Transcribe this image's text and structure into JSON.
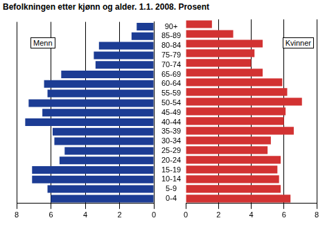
{
  "chart_data": {
    "type": "bar",
    "orientation": "horizontal",
    "title": "Befolkningen etter kjønn og alder. 1.1. 2008. Prosent",
    "categories": [
      "0-4",
      "5-9",
      "10-14",
      "15-19",
      "20-24",
      "25-29",
      "30-34",
      "35-39",
      "40-44",
      "45-49",
      "50-54",
      "55-59",
      "60-64",
      "65-69",
      "70-74",
      "75-79",
      "80-84",
      "85-89",
      "90+"
    ],
    "series": [
      {
        "name": "Menn",
        "color": "#1c3c94",
        "values": [
          6.0,
          6.2,
          7.1,
          7.1,
          5.5,
          5.2,
          5.8,
          5.9,
          7.5,
          6.5,
          7.3,
          6.2,
          6.4,
          5.4,
          3.4,
          3.5,
          3.2,
          1.3,
          1.0
        ]
      },
      {
        "name": "Kvinner",
        "color": "#d23232",
        "values": [
          6.4,
          5.8,
          5.7,
          5.6,
          5.8,
          5.0,
          5.2,
          6.6,
          6.0,
          6.1,
          7.1,
          6.2,
          5.9,
          4.7,
          4.0,
          4.2,
          4.7,
          2.9,
          1.6
        ]
      }
    ],
    "xlim": [
      0,
      8
    ],
    "xticks": [
      0,
      2,
      4,
      6,
      8
    ],
    "grid": true
  }
}
